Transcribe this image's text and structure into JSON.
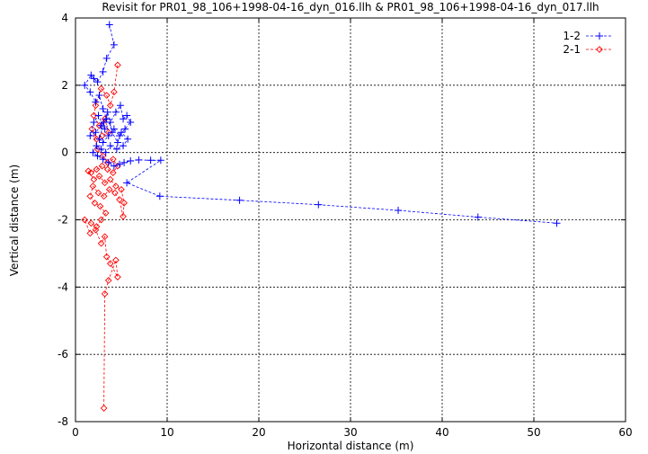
{
  "chart_data": {
    "type": "scatter",
    "title": "Revisit for PR01_98_106+1998-04-16_dyn_016.llh & PR01_98_106+1998-04-16_dyn_017.llh",
    "xlabel": "Horizontal distance (m)",
    "ylabel": "Vertical distance (m)",
    "xlim": [
      0,
      60
    ],
    "ylim": [
      -8,
      4
    ],
    "xticks": [
      "0",
      "10",
      "20",
      "30",
      "40",
      "50",
      "60"
    ],
    "yticks": [
      "-8",
      "-6",
      "-4",
      "-2",
      "0",
      "2",
      "4"
    ],
    "grid": true,
    "legend_position": "top-right",
    "series": [
      {
        "name": "1-2",
        "color": "#0000ff",
        "marker": "plus",
        "line": "dashed",
        "points": [
          [
            3.7,
            3.8
          ],
          [
            4.2,
            3.2
          ],
          [
            3.4,
            2.8
          ],
          [
            3.0,
            2.4
          ],
          [
            2.4,
            2.1
          ],
          [
            2.0,
            2.2
          ],
          [
            1.7,
            2.3
          ],
          [
            1.0,
            2.0
          ],
          [
            1.6,
            1.8
          ],
          [
            2.2,
            1.5
          ],
          [
            2.6,
            1.7
          ],
          [
            3.0,
            1.3
          ],
          [
            3.4,
            1.0
          ],
          [
            2.8,
            0.8
          ],
          [
            2.2,
            0.6
          ],
          [
            1.6,
            0.5
          ],
          [
            2.0,
            0.9
          ],
          [
            2.5,
            1.1
          ],
          [
            3.2,
            0.7
          ],
          [
            3.8,
            0.9
          ],
          [
            4.4,
            1.2
          ],
          [
            4.9,
            1.4
          ],
          [
            5.2,
            1.0
          ],
          [
            5.6,
            1.1
          ],
          [
            6.0,
            0.9
          ],
          [
            5.4,
            0.7
          ],
          [
            4.8,
            0.5
          ],
          [
            4.2,
            0.7
          ],
          [
            3.6,
            0.5
          ],
          [
            3.0,
            0.3
          ],
          [
            2.6,
            0.4
          ],
          [
            3.1,
            0.9
          ],
          [
            3.5,
            1.2
          ],
          [
            4.0,
            0.6
          ],
          [
            4.6,
            0.3
          ],
          [
            5.0,
            0.6
          ],
          [
            5.7,
            0.4
          ],
          [
            5.2,
            0.2
          ],
          [
            4.5,
            0.1
          ],
          [
            3.8,
            0.2
          ],
          [
            3.3,
            0.0
          ],
          [
            2.8,
            0.1
          ],
          [
            2.3,
            0.2
          ],
          [
            1.9,
            0.0
          ],
          [
            2.4,
            -0.1
          ],
          [
            3.0,
            -0.2
          ],
          [
            3.6,
            -0.3
          ],
          [
            4.2,
            -0.4
          ],
          [
            4.8,
            -0.35
          ],
          [
            5.3,
            -0.3
          ],
          [
            6.0,
            -0.25
          ],
          [
            6.9,
            -0.22
          ],
          [
            8.2,
            -0.23
          ],
          [
            9.3,
            -0.23
          ],
          [
            5.6,
            -0.9
          ],
          [
            9.2,
            -1.3
          ],
          [
            17.9,
            -1.42
          ],
          [
            26.5,
            -1.55
          ],
          [
            35.2,
            -1.72
          ],
          [
            43.9,
            -1.92
          ],
          [
            52.5,
            -2.1
          ]
        ]
      },
      {
        "name": "2-1",
        "color": "#ff0000",
        "marker": "diamond",
        "line": "dashed",
        "points": [
          [
            4.6,
            2.6
          ],
          [
            4.2,
            1.8
          ],
          [
            3.8,
            1.4
          ],
          [
            3.4,
            1.7
          ],
          [
            2.8,
            1.9
          ],
          [
            2.2,
            1.4
          ],
          [
            2.0,
            1.1
          ],
          [
            2.6,
            0.8
          ],
          [
            3.2,
            1.0
          ],
          [
            3.6,
            0.6
          ],
          [
            2.9,
            0.5
          ],
          [
            2.3,
            0.4
          ],
          [
            1.8,
            0.7
          ],
          [
            2.4,
            0.1
          ],
          [
            3.0,
            -0.1
          ],
          [
            3.5,
            -0.3
          ],
          [
            4.1,
            -0.2
          ],
          [
            4.6,
            -0.4
          ],
          [
            4.1,
            -0.6
          ],
          [
            3.5,
            -0.5
          ],
          [
            2.9,
            -0.4
          ],
          [
            2.3,
            -0.5
          ],
          [
            1.7,
            -0.6
          ],
          [
            1.4,
            -0.55
          ],
          [
            2.0,
            -0.8
          ],
          [
            2.6,
            -0.7
          ],
          [
            3.2,
            -0.9
          ],
          [
            3.8,
            -0.8
          ],
          [
            4.4,
            -1.0
          ],
          [
            5.0,
            -1.1
          ],
          [
            5.3,
            -1.5
          ],
          [
            5.2,
            -1.9
          ],
          [
            4.8,
            -1.4
          ],
          [
            4.3,
            -1.2
          ],
          [
            3.7,
            -1.1
          ],
          [
            3.1,
            -1.3
          ],
          [
            2.5,
            -1.2
          ],
          [
            1.9,
            -1.0
          ],
          [
            1.6,
            -1.3
          ],
          [
            2.1,
            -1.5
          ],
          [
            2.7,
            -1.6
          ],
          [
            3.3,
            -1.8
          ],
          [
            2.8,
            -2.0
          ],
          [
            2.3,
            -2.2
          ],
          [
            1.7,
            -2.1
          ],
          [
            1.0,
            -2.0
          ],
          [
            1.6,
            -2.4
          ],
          [
            2.2,
            -2.3
          ],
          [
            2.8,
            -2.7
          ],
          [
            3.2,
            -2.5
          ],
          [
            3.4,
            -3.1
          ],
          [
            3.8,
            -3.3
          ],
          [
            4.6,
            -3.7
          ],
          [
            4.4,
            -3.2
          ],
          [
            3.6,
            -3.8
          ],
          [
            3.2,
            -4.2
          ],
          [
            3.1,
            -7.6
          ]
        ]
      }
    ]
  }
}
